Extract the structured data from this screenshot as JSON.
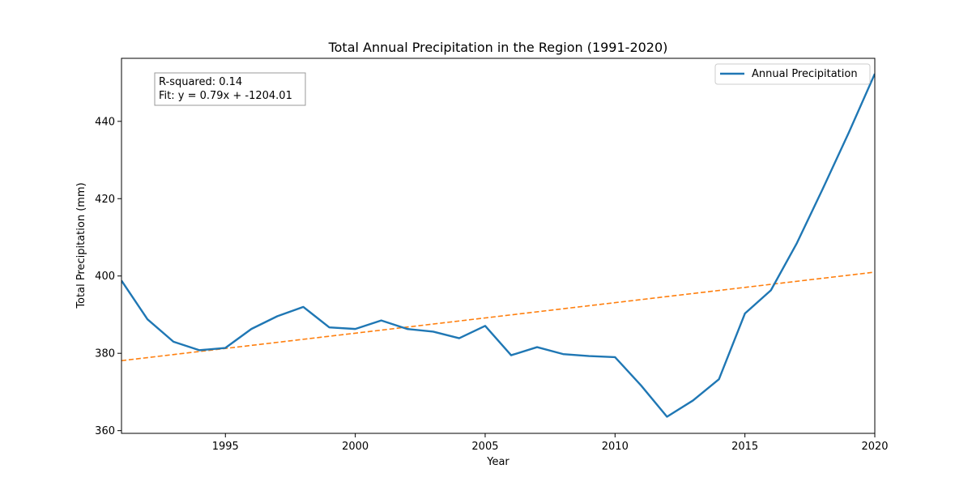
{
  "chart_data": {
    "type": "line",
    "title": "Total Annual Precipitation in the Region (1991-2020)",
    "xlabel": "Year",
    "ylabel": "Total Precipitation (mm)",
    "xlim": [
      1991,
      2020
    ],
    "ylim": [
      359.3,
      456.3
    ],
    "xticks": [
      1995,
      2000,
      2005,
      2010,
      2015,
      2020
    ],
    "yticks": [
      360,
      380,
      400,
      420,
      440
    ],
    "grid": false,
    "legend_position": "top-right",
    "series": [
      {
        "name": "Annual Precipitation",
        "color": "#1f77b4",
        "style": "solid",
        "x": [
          1991,
          1992,
          1993,
          1994,
          1995,
          1996,
          1997,
          1998,
          1999,
          2000,
          2001,
          2002,
          2003,
          2004,
          2005,
          2006,
          2007,
          2008,
          2009,
          2010,
          2011,
          2012,
          2013,
          2014,
          2015,
          2016,
          2017,
          2018,
          2019,
          2020
        ],
        "values": [
          398.8,
          388.8,
          383.0,
          380.8,
          381.4,
          386.3,
          389.6,
          392.0,
          386.7,
          386.3,
          388.5,
          386.3,
          385.6,
          383.9,
          387.1,
          379.5,
          381.6,
          379.8,
          379.3,
          379.0,
          371.7,
          363.6,
          367.8,
          373.3,
          390.3,
          396.3,
          408.5,
          422.6,
          437.1,
          452.3
        ]
      },
      {
        "name": "",
        "color": "#ff7f0e",
        "style": "dashed",
        "x": [
          1991,
          2020
        ],
        "values": [
          378.1,
          401.0
        ]
      }
    ],
    "annotation": {
      "line1": "R-squared: 0.14",
      "line2": "Fit: y = 0.79x + -1204.01"
    }
  }
}
